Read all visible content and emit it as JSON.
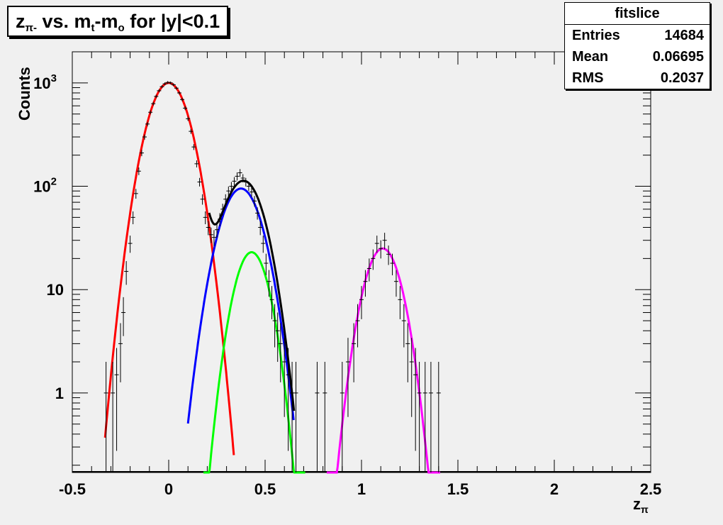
{
  "header": {
    "title_main": "z",
    "title_sub": "π-",
    "title_rest_1": " vs. m",
    "title_sub_t": "t",
    "title_rest_2": "-m",
    "title_sub_o": "o",
    "title_rest_3": " for |y|<0.1"
  },
  "stats": {
    "title": "fitslice",
    "rows": [
      {
        "label": "Entries",
        "value": "14684"
      },
      {
        "label": "Mean",
        "value": "0.06695"
      },
      {
        "label": "RMS",
        "value": "0.2037"
      }
    ]
  },
  "axes": {
    "ylabel": "Counts",
    "xlabel_main": "z",
    "xlabel_sub": "π"
  },
  "colors": {
    "background": "#f0f0f0",
    "data": "#000000",
    "fit_total": "#000000",
    "fit_pion": "#ff0000",
    "fit_kaon": "#0000ff",
    "fit_proton_like": "#00ff00",
    "fit_magenta": "#ff00ff"
  },
  "chart_data": {
    "type": "scatter",
    "title": "zπ- vs. mt-mo for |y|<0.1",
    "xlabel": "zπ",
    "ylabel": "Counts",
    "xlim": [
      -0.5,
      2.5
    ],
    "ylim": [
      0.17,
      2000
    ],
    "log_y": true,
    "grid": false,
    "x_ticks": [
      "-0.5",
      "0",
      "0.5",
      "1",
      "1.5",
      "2",
      "2.5"
    ],
    "y_ticks": [
      {
        "label_base": "1",
        "label_exp": "",
        "value": 1
      },
      {
        "label_base": "10",
        "label_exp": "",
        "value": 10
      },
      {
        "label_base": "10",
        "label_exp": "2",
        "value": 100
      },
      {
        "label_base": "10",
        "label_exp": "3",
        "value": 1000
      }
    ],
    "fits": [
      {
        "color": "#ff0000",
        "amp": 1000,
        "mean": 0.0,
        "sigma": 0.083,
        "xmin": -0.33,
        "xmax": 0.34
      },
      {
        "color": "#0000ff",
        "amp": 95,
        "mean": 0.375,
        "sigma": 0.085,
        "xmin": 0.1,
        "xmax": 0.65
      },
      {
        "color": "#00ff00",
        "amp": 23,
        "mean": 0.43,
        "sigma": 0.07,
        "xmin": 0.18,
        "xmax": 0.71
      },
      {
        "color": "#ff00ff",
        "amp": 25,
        "mean": 1.11,
        "sigma": 0.075,
        "xmin": 0.82,
        "xmax": 1.41
      }
    ],
    "total_fit": {
      "color": "#000000",
      "xmin": 0.21,
      "xmax": 0.65
    },
    "points": [
      [
        -0.325,
        1
      ],
      [
        -0.29,
        1
      ],
      [
        -0.27,
        1.5
      ],
      [
        -0.25,
        3
      ],
      [
        -0.235,
        6
      ],
      [
        -0.22,
        15
      ],
      [
        -0.2,
        28
      ],
      [
        -0.185,
        50
      ],
      [
        -0.17,
        85
      ],
      [
        -0.155,
        140
      ],
      [
        -0.14,
        210
      ],
      [
        -0.125,
        300
      ],
      [
        -0.11,
        400
      ],
      [
        -0.095,
        520
      ],
      [
        -0.08,
        630
      ],
      [
        -0.065,
        740
      ],
      [
        -0.05,
        840
      ],
      [
        -0.035,
        920
      ],
      [
        -0.02,
        980
      ],
      [
        -0.005,
        1010
      ],
      [
        0.01,
        1000
      ],
      [
        0.025,
        960
      ],
      [
        0.04,
        890
      ],
      [
        0.055,
        800
      ],
      [
        0.07,
        690
      ],
      [
        0.085,
        570
      ],
      [
        0.1,
        450
      ],
      [
        0.115,
        340
      ],
      [
        0.13,
        240
      ],
      [
        0.145,
        165
      ],
      [
        0.16,
        110
      ],
      [
        0.175,
        75
      ],
      [
        0.19,
        50
      ],
      [
        0.205,
        40
      ],
      [
        0.22,
        34
      ],
      [
        0.235,
        32
      ],
      [
        0.25,
        38
      ],
      [
        0.265,
        48
      ],
      [
        0.28,
        60
      ],
      [
        0.295,
        75
      ],
      [
        0.31,
        90
      ],
      [
        0.325,
        100
      ],
      [
        0.34,
        112
      ],
      [
        0.355,
        125
      ],
      [
        0.37,
        135
      ],
      [
        0.385,
        120
      ],
      [
        0.4,
        110
      ],
      [
        0.415,
        100
      ],
      [
        0.43,
        88
      ],
      [
        0.445,
        72
      ],
      [
        0.46,
        55
      ],
      [
        0.475,
        40
      ],
      [
        0.49,
        28
      ],
      [
        0.505,
        18
      ],
      [
        0.52,
        12
      ],
      [
        0.535,
        8
      ],
      [
        0.55,
        5
      ],
      [
        0.565,
        4
      ],
      [
        0.58,
        3
      ],
      [
        0.6,
        2
      ],
      [
        0.62,
        1.5
      ],
      [
        0.64,
        1
      ],
      [
        0.66,
        1
      ],
      [
        0.77,
        1
      ],
      [
        0.81,
        1
      ],
      [
        0.9,
        1
      ],
      [
        0.93,
        2
      ],
      [
        0.96,
        3
      ],
      [
        0.98,
        5
      ],
      [
        1.0,
        8
      ],
      [
        1.02,
        12
      ],
      [
        1.04,
        16
      ],
      [
        1.06,
        20
      ],
      [
        1.08,
        28
      ],
      [
        1.1,
        25
      ],
      [
        1.12,
        30
      ],
      [
        1.14,
        22
      ],
      [
        1.16,
        18
      ],
      [
        1.18,
        12
      ],
      [
        1.2,
        8
      ],
      [
        1.22,
        5
      ],
      [
        1.24,
        3
      ],
      [
        1.26,
        2
      ],
      [
        1.28,
        1.5
      ],
      [
        1.3,
        1
      ],
      [
        1.33,
        1
      ],
      [
        1.36,
        1
      ],
      [
        1.4,
        1
      ]
    ]
  }
}
